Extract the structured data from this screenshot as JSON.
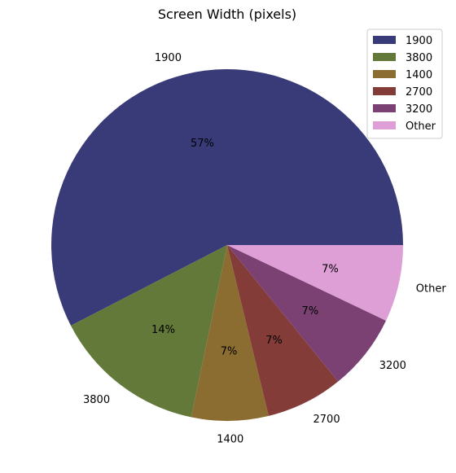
{
  "chart_data": {
    "type": "pie",
    "title": "Screen Width (pixels)",
    "categories": [
      "1900",
      "3800",
      "1400",
      "2700",
      "3200",
      "Other"
    ],
    "values": [
      57,
      14,
      7,
      7,
      7,
      7
    ],
    "percent_labels": [
      "57%",
      "14%",
      "7%",
      "7%",
      "7%",
      "7%"
    ],
    "colors": [
      "#393b79",
      "#637939",
      "#8c6d31",
      "#843c39",
      "#7b4173",
      "#de9ed6"
    ],
    "legend": {
      "position": "top-right",
      "entries": [
        "1900",
        "3800",
        "1400",
        "2700",
        "3200",
        "Other"
      ]
    }
  }
}
